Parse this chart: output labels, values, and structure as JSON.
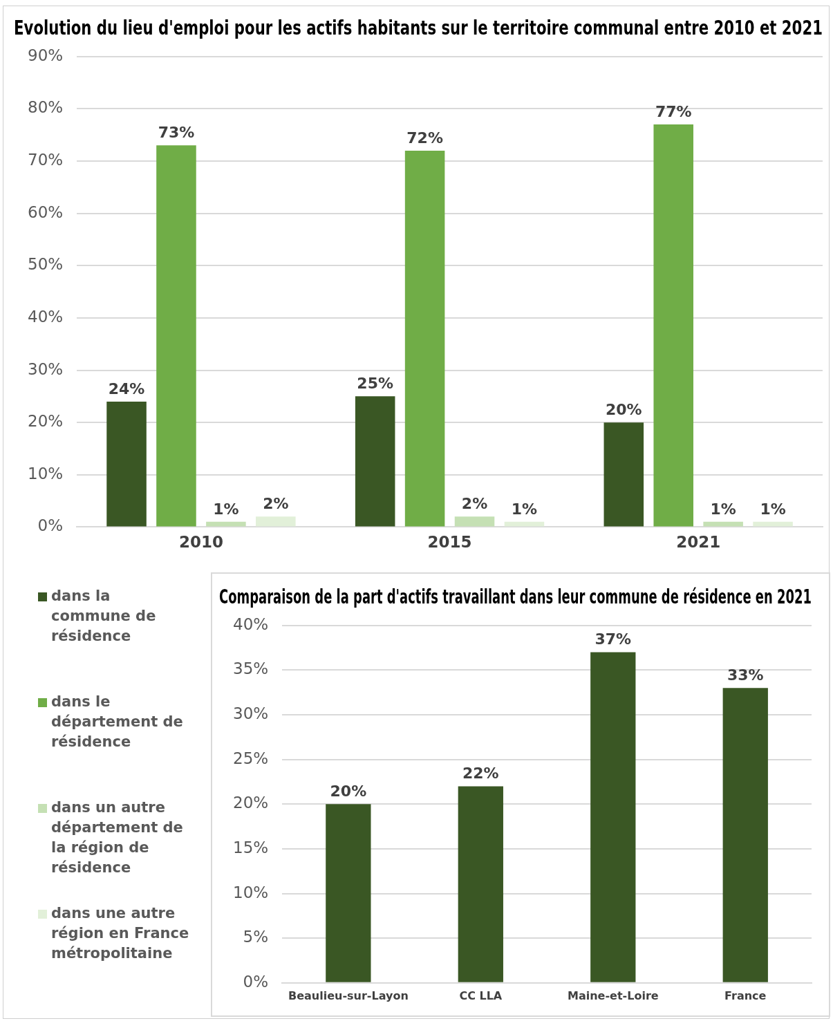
{
  "chart_data": [
    {
      "type": "bar",
      "title": "Evolution du lieu d'emploi pour les actifs habitants sur le territoire communal entre 2010 et 2021",
      "categories": [
        "2010",
        "2015",
        "2021"
      ],
      "series": [
        {
          "name": "dans la commune de résidence",
          "color": "#3a5724",
          "values": [
            24,
            25,
            20
          ],
          "value_labels": [
            "24%",
            "25%",
            "20%"
          ]
        },
        {
          "name": "dans le département de résidence",
          "color": "#70ad47",
          "values": [
            73,
            72,
            77
          ],
          "value_labels": [
            "73%",
            "72%",
            "77%"
          ]
        },
        {
          "name": "dans un autre département de la région de résidence",
          "color": "#c5e0b4",
          "values": [
            1,
            2,
            1
          ],
          "value_labels": [
            "1%",
            "2%",
            "1%"
          ]
        },
        {
          "name": "dans une autre région en France métropolitaine",
          "color": "#e2f0d9",
          "values": [
            2,
            1,
            1
          ],
          "value_labels": [
            "2%",
            "1%",
            "1%"
          ]
        }
      ],
      "ylim": [
        0,
        90
      ],
      "yticks": [
        {
          "value": 0,
          "label": "0%"
        },
        {
          "value": 10,
          "label": "10%"
        },
        {
          "value": 20,
          "label": "20%"
        },
        {
          "value": 30,
          "label": "30%"
        },
        {
          "value": 40,
          "label": "40%"
        },
        {
          "value": 50,
          "label": "50%"
        },
        {
          "value": 60,
          "label": "60%"
        },
        {
          "value": 70,
          "label": "70%"
        },
        {
          "value": 80,
          "label": "80%"
        },
        {
          "value": 90,
          "label": "90%"
        }
      ],
      "grid": "y",
      "legend": "bottom left"
    },
    {
      "type": "bar",
      "title": "Comparaison de la part d'actifs travaillant dans leur commune de résidence en 2021",
      "categories": [
        "Beaulieu-sur-Layon",
        "CC LLA",
        "Maine-et-Loire",
        "France"
      ],
      "values": [
        20,
        22,
        37,
        33
      ],
      "value_labels": [
        "20%",
        "22%",
        "37%",
        "33%"
      ],
      "color": "#3a5724",
      "ylim": [
        0,
        40
      ],
      "yticks": [
        {
          "value": 0,
          "label": "0%"
        },
        {
          "value": 5,
          "label": "5%"
        },
        {
          "value": 10,
          "label": "10%"
        },
        {
          "value": 15,
          "label": "15%"
        },
        {
          "value": 20,
          "label": "20%"
        },
        {
          "value": 25,
          "label": "25%"
        },
        {
          "value": 30,
          "label": "30%"
        },
        {
          "value": 35,
          "label": "35%"
        },
        {
          "value": 40,
          "label": "40%"
        }
      ],
      "grid": "y",
      "legend": false
    }
  ]
}
